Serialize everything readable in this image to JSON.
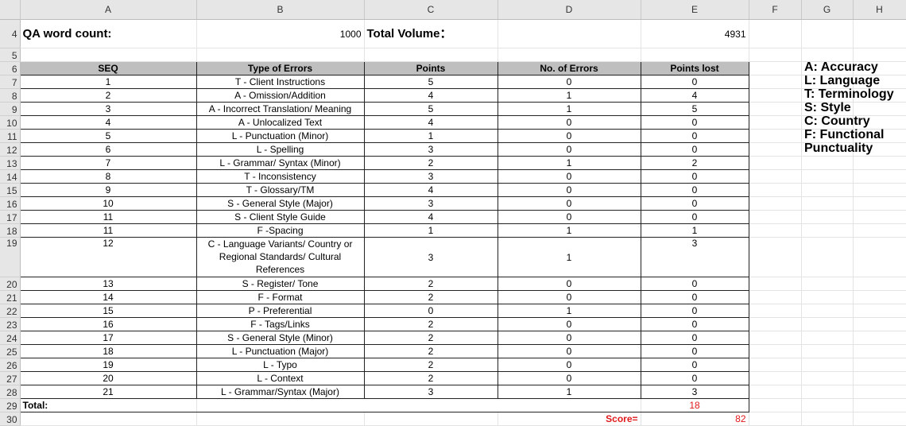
{
  "columns": [
    "A",
    "B",
    "C",
    "D",
    "E",
    "F",
    "G",
    "H"
  ],
  "row4": {
    "label": "QA word count:",
    "word_count": "1000",
    "volume_label": "Total Volume：",
    "volume": "4931"
  },
  "headers": [
    "SEQ",
    "Type of Errors",
    "Points",
    "No. of Errors",
    "Points lost"
  ],
  "rows": [
    {
      "n": "7",
      "seq": "1",
      "type": "T - Client Instructions",
      "points": "5",
      "errors": "0",
      "lost": "0"
    },
    {
      "n": "8",
      "seq": "2",
      "type": "A - Omission/Addition",
      "points": "4",
      "errors": "1",
      "lost": "4"
    },
    {
      "n": "9",
      "seq": "3",
      "type": "A - Incorrect Translation/ Meaning",
      "points": "5",
      "errors": "1",
      "lost": "5"
    },
    {
      "n": "10",
      "seq": "4",
      "type": "A - Unlocalized Text",
      "points": "4",
      "errors": "0",
      "lost": "0"
    },
    {
      "n": "11",
      "seq": "5",
      "type": "L - Punctuation (Minor)",
      "points": "1",
      "errors": "0",
      "lost": "0"
    },
    {
      "n": "12",
      "seq": "6",
      "type": "L - Spelling",
      "points": "3",
      "errors": "0",
      "lost": "0"
    },
    {
      "n": "13",
      "seq": "7",
      "type": "L - Grammar/ Syntax (Minor)",
      "points": "2",
      "errors": "1",
      "lost": "2"
    },
    {
      "n": "14",
      "seq": "8",
      "type": "T - Inconsistency",
      "points": "3",
      "errors": "0",
      "lost": "0"
    },
    {
      "n": "15",
      "seq": "9",
      "type": "T - Glossary/TM",
      "points": "4",
      "errors": "0",
      "lost": "0"
    },
    {
      "n": "16",
      "seq": "10",
      "type": "S - General Style (Major)",
      "points": "3",
      "errors": "0",
      "lost": "0"
    },
    {
      "n": "17",
      "seq": "11",
      "type": "S - Client Style Guide",
      "points": "4",
      "errors": "0",
      "lost": "0"
    },
    {
      "n": "18",
      "seq": "11",
      "type": "F -Spacing",
      "points": "1",
      "errors": "1",
      "lost": "1"
    },
    {
      "n": "19",
      "seq": "12",
      "type": "C - Language Variants/ Country or Regional Standards/ Cultural References",
      "points": "3",
      "errors": "1",
      "lost": "3"
    },
    {
      "n": "20",
      "seq": "13",
      "type": "S - Register/ Tone",
      "points": "2",
      "errors": "0",
      "lost": "0"
    },
    {
      "n": "21",
      "seq": "14",
      "type": "F - Format",
      "points": "2",
      "errors": "0",
      "lost": "0"
    },
    {
      "n": "22",
      "seq": "15",
      "type": "P - Preferential",
      "points": "0",
      "errors": "1",
      "lost": "0"
    },
    {
      "n": "23",
      "seq": "16",
      "type": "F - Tags/Links",
      "points": "2",
      "errors": "0",
      "lost": "0"
    },
    {
      "n": "24",
      "seq": "17",
      "type": "S - General Style (Minor)",
      "points": "2",
      "errors": "0",
      "lost": "0"
    },
    {
      "n": "25",
      "seq": "18",
      "type": "L - Punctuation (Major)",
      "points": "2",
      "errors": "0",
      "lost": "0"
    },
    {
      "n": "26",
      "seq": "19",
      "type": "L - Typo",
      "points": "2",
      "errors": "0",
      "lost": "0"
    },
    {
      "n": "27",
      "seq": "20",
      "type": "L - Context",
      "points": "2",
      "errors": "0",
      "lost": "0"
    },
    {
      "n": "28",
      "seq": "21",
      "type": "L - Grammar/Syntax (Major)",
      "points": "3",
      "errors": "1",
      "lost": "3"
    }
  ],
  "total": {
    "label": "Total:",
    "value": "18"
  },
  "score": {
    "label": "Score=",
    "value": "82"
  },
  "legend": [
    "A: Accuracy",
    "L: Language",
    "T: Terminology",
    "S: Style",
    "C: Country",
    "F: Functional",
    "Punctuality"
  ],
  "colors": {
    "header_fill": "#bfbfbf",
    "score_red": "#e0191b"
  }
}
